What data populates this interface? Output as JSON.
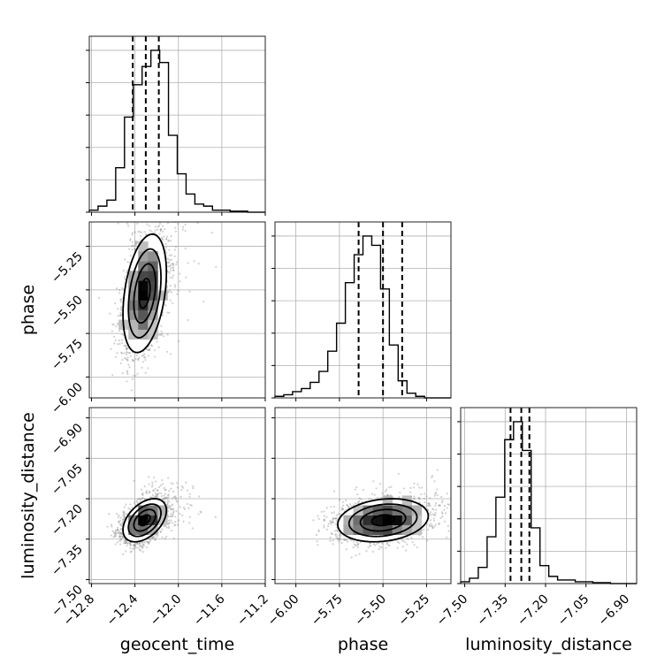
{
  "chart_data": {
    "type": "corner",
    "parameters": [
      "geocent_time",
      "phase",
      "luminosity_distance"
    ],
    "axis_labels": {
      "geocent_time": "geocent_time",
      "phase": "phase",
      "luminosity_distance": "luminosity_distance"
    },
    "ranges": {
      "geocent_time": [
        -12.82,
        -11.2
      ],
      "phase": [
        -6.12,
        -5.11
      ],
      "luminosity_distance": [
        -7.515,
        -6.862
      ]
    },
    "ticks": {
      "geocent_time": [
        {
          "value": -12.8,
          "label": "−12.8"
        },
        {
          "value": -12.4,
          "label": "−12.4"
        },
        {
          "value": -12.0,
          "label": "−12.0"
        },
        {
          "value": -11.6,
          "label": "−11.6"
        },
        {
          "value": -11.2,
          "label": "−11.2"
        }
      ],
      "phase": [
        {
          "value": -6.0,
          "label": "−6.00"
        },
        {
          "value": -5.75,
          "label": "−5.75"
        },
        {
          "value": -5.5,
          "label": "−5.50"
        },
        {
          "value": -5.25,
          "label": "−5.25"
        }
      ],
      "luminosity_distance": [
        {
          "value": -7.5,
          "label": "−7.50"
        },
        {
          "value": -7.35,
          "label": "−7.35"
        },
        {
          "value": -7.2,
          "label": "−7.20"
        },
        {
          "value": -7.05,
          "label": "−7.05"
        },
        {
          "value": -6.9,
          "label": "−6.90"
        }
      ]
    },
    "quantiles": {
      "geocent_time": [
        -12.42,
        -12.3,
        -12.18
      ],
      "phase": [
        -5.64,
        -5.5,
        -5.39
      ],
      "luminosity_distance": [
        -7.33,
        -7.29,
        -7.26
      ]
    },
    "histograms": {
      "geocent_time": {
        "bin_start": -12.82,
        "bin_width": 0.081,
        "counts": [
          1,
          3,
          6,
          22,
          47,
          63,
          72,
          80,
          74,
          38,
          19,
          9,
          4,
          3,
          1,
          1,
          0.5,
          0.5,
          0,
          0
        ]
      },
      "phase": {
        "bin_start": -6.12,
        "bin_width": 0.0505,
        "counts": [
          1,
          2,
          4,
          6,
          10,
          17,
          30,
          48,
          74,
          92,
          104,
          98,
          70,
          34,
          11,
          3,
          1,
          0,
          0,
          0
        ]
      },
      "luminosity_distance": {
        "bin_start": -7.515,
        "bin_width": 0.0327,
        "counts": [
          1,
          3,
          9,
          26,
          48,
          80,
          90,
          74,
          31,
          10,
          4,
          2,
          2,
          1,
          1,
          0.5,
          0.5,
          0,
          0,
          0
        ]
      }
    },
    "pairs": [
      {
        "x": "geocent_time",
        "y": "phase",
        "mean": [
          -12.31,
          -5.52
        ],
        "sd": [
          0.1,
          0.17
        ],
        "rho": 0.35
      },
      {
        "x": "geocent_time",
        "y": "luminosity_distance",
        "mean": [
          -12.31,
          -7.28
        ],
        "sd": [
          0.1,
          0.04
        ],
        "rho": 0.45
      },
      {
        "x": "phase",
        "y": "luminosity_distance",
        "mean": [
          -5.5,
          -7.28
        ],
        "sd": [
          0.13,
          0.04
        ],
        "rho": 0.2
      }
    ],
    "grid": true,
    "legend": "none"
  }
}
